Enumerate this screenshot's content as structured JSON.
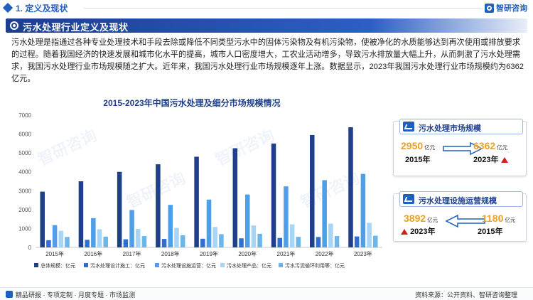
{
  "section": {
    "title": "1. 定义及现状"
  },
  "logo": {
    "text": "智研咨询"
  },
  "banner": {
    "title": "污水处理行业定义及现状"
  },
  "intro": "污水处理是指通过各种专业处理技术和手段去除或降低不同类型污水中的固体污染物及有机污染物，使被净化的水质能够达到再次使用或排放要求的过程。随着我国经济的快速发展和城市化水平的提高，城市人口密度增大，工农业活动增多，导致污水排放量大幅上升，从而刺激了污水处理需求，我国污水处理行业市场规模随之扩大。近年来，我国污水处理行业市场规模逐年上涨。数据显示，2023年我国污水处理行业市场规模约为6362亿元。",
  "chart_data": {
    "type": "bar",
    "title": "2015-2023年中国污水处理及细分市场规模情况",
    "categories": [
      "2015年",
      "2016年",
      "2017年",
      "2018年",
      "2019年",
      "2020年",
      "2021年",
      "2022年",
      "2023年"
    ],
    "ylim": [
      0,
      7000
    ],
    "yticks": [
      0,
      1000,
      2000,
      3000,
      4000,
      5000,
      6000,
      7000
    ],
    "grid": false,
    "legend_position": "bottom",
    "series": [
      {
        "name": "总体规模：亿元",
        "color": "#1f3f8a",
        "values": [
          2950,
          3500,
          4000,
          4400,
          4800,
          5250,
          5500,
          5950,
          6362
        ]
      },
      {
        "name": "污水处理设计施工：亿元",
        "color": "#2f6fd0",
        "values": [
          380,
          400,
          430,
          450,
          460,
          480,
          500,
          550,
          580
        ]
      },
      {
        "name": "污水处理设施运营：亿元",
        "color": "#4f9ee8",
        "values": [
          1180,
          1550,
          1980,
          2250,
          2530,
          2800,
          3230,
          3560,
          3892
        ]
      },
      {
        "name": "污水处理产品：亿元",
        "color": "#a8d4f5",
        "values": [
          880,
          960,
          980,
          1030,
          1080,
          1160,
          1220,
          1260,
          1300
        ]
      },
      {
        "name": "污水污泥循环利用等：亿元",
        "color": "#6cb6ea",
        "values": [
          550,
          570,
          600,
          640,
          700,
          720,
          560,
          600,
          620
        ]
      }
    ]
  },
  "card1": {
    "title": "污水处理市场规模",
    "left_value": "2950",
    "left_unit": "亿元",
    "left_year": "2015年",
    "right_value": "6362",
    "right_unit": "亿元",
    "right_year": "2023年"
  },
  "card2": {
    "title": "污水处理设施运营规模",
    "left_value": "3892",
    "left_unit": "亿元",
    "left_year": "2023年",
    "right_value": "1180",
    "right_unit": "亿元",
    "right_year": "2015年"
  },
  "footer": {
    "left": "精品研报 · 专项定制 · 月度专题 · 市场监测",
    "right": "资料来源：公开资料、智研咨询整理"
  },
  "watermark": "智研咨询"
}
